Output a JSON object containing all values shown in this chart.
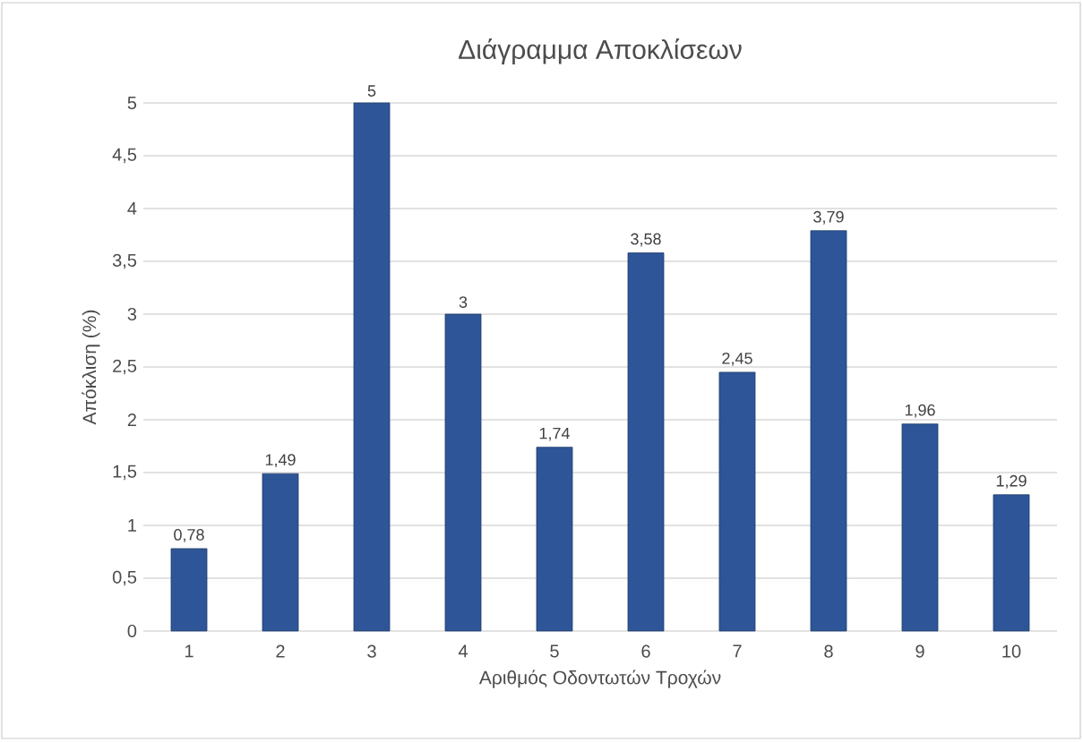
{
  "chart_data": {
    "type": "bar",
    "title": "Διάγραμμα Αποκλίσεων",
    "xlabel": "Αριθμός Οδοντωτών Τροχών",
    "ylabel": "Απόκλιση (%)",
    "categories": [
      "1",
      "2",
      "3",
      "4",
      "5",
      "6",
      "7",
      "8",
      "9",
      "10"
    ],
    "values": [
      0.78,
      1.49,
      5,
      3,
      1.74,
      3.58,
      2.45,
      3.79,
      1.96,
      1.29
    ],
    "value_labels": [
      "0,78",
      "1,49",
      "5",
      "3",
      "1,74",
      "3,58",
      "2,45",
      "3,79",
      "1,96",
      "1,29"
    ],
    "color": "#2e5597",
    "ylim": [
      0,
      5
    ],
    "yticks": [
      0,
      {
        "value": 0.5,
        "label": "0,5"
      },
      1,
      {
        "value": 1.5,
        "label": "1,5"
      },
      2,
      {
        "value": 2.5,
        "label": "2,5"
      },
      3,
      {
        "value": 3.5,
        "label": "3,5"
      },
      4,
      {
        "value": 4.5,
        "label": "4,5"
      },
      5
    ],
    "grid": "y"
  }
}
